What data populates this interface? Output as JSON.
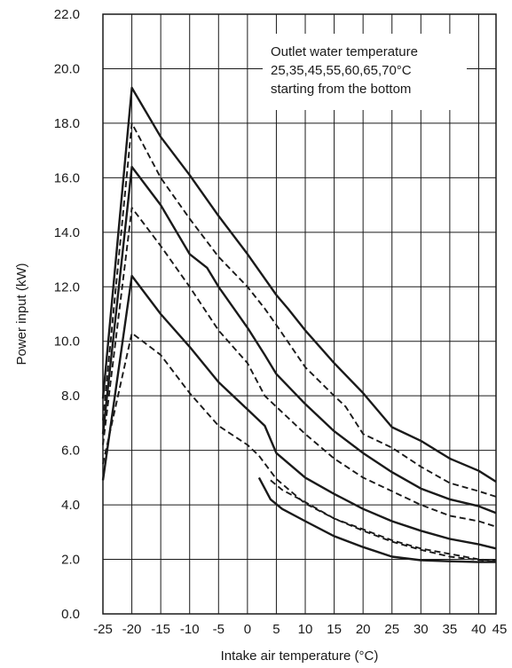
{
  "chart_data": {
    "type": "line",
    "xlabel": "Intake air temperature (°C)",
    "ylabel": "Power input (kW)",
    "xlim": [
      -25,
      43
    ],
    "ylim": [
      0,
      22
    ],
    "x_ticks": [
      -25,
      -20,
      -15,
      -10,
      -5,
      0,
      5,
      10,
      15,
      20,
      25,
      30,
      35,
      40,
      45
    ],
    "x_tick_labels": [
      "-25",
      "-20",
      "-15",
      "-10",
      "-5",
      "0",
      "5",
      "10",
      "15",
      "20",
      "25",
      "30",
      "35",
      "40",
      "45"
    ],
    "y_ticks": [
      0,
      2,
      4,
      6,
      8,
      10,
      12,
      14,
      16,
      18,
      20,
      22
    ],
    "y_tick_labels": [
      "0.0",
      "2.0",
      "4.0",
      "6.0",
      "8.0",
      "10.0",
      "12.0",
      "14.0",
      "16.0",
      "18.0",
      "20.0",
      "22.0"
    ],
    "grid": true,
    "annotation": [
      "Outlet water temperature",
      "25,35,45,55,60,65,70°C",
      "starting from the bottom"
    ],
    "series": [
      {
        "style": "solid",
        "points": [
          [
            2,
            5.0
          ],
          [
            4,
            4.2
          ],
          [
            6,
            3.85
          ],
          [
            10,
            3.4
          ],
          [
            15,
            2.85
          ],
          [
            20,
            2.45
          ],
          [
            25,
            2.1
          ],
          [
            30,
            1.97
          ],
          [
            35,
            1.93
          ],
          [
            40,
            1.9
          ],
          [
            43,
            1.9
          ]
        ]
      },
      {
        "style": "dashed",
        "points": [
          [
            4,
            4.9
          ],
          [
            6,
            4.55
          ],
          [
            10,
            4.1
          ],
          [
            15,
            3.5
          ],
          [
            20,
            3.05
          ],
          [
            25,
            2.65
          ],
          [
            30,
            2.35
          ],
          [
            35,
            2.1
          ],
          [
            40,
            1.98
          ],
          [
            43,
            1.93
          ]
        ]
      },
      {
        "style": "solid",
        "points": [
          [
            -25,
            4.9
          ],
          [
            -20,
            12.4
          ],
          [
            -15,
            11.0
          ],
          [
            -10,
            9.8
          ],
          [
            -5,
            8.5
          ],
          [
            0,
            7.5
          ],
          [
            3,
            6.9
          ],
          [
            5,
            5.9
          ],
          [
            10,
            5.0
          ],
          [
            15,
            4.4
          ],
          [
            20,
            3.85
          ],
          [
            25,
            3.4
          ],
          [
            30,
            3.05
          ],
          [
            35,
            2.75
          ],
          [
            40,
            2.55
          ],
          [
            43,
            2.4
          ]
        ]
      },
      {
        "style": "dashed",
        "points": [
          [
            -25,
            5.5
          ],
          [
            -20,
            10.3
          ],
          [
            -15,
            9.5
          ],
          [
            -10,
            8.1
          ],
          [
            -5,
            6.9
          ],
          [
            0,
            6.2
          ],
          [
            2,
            5.8
          ],
          [
            5,
            4.95
          ],
          [
            10,
            4.05
          ],
          [
            15,
            3.5
          ],
          [
            20,
            3.1
          ],
          [
            25,
            2.7
          ],
          [
            30,
            2.4
          ],
          [
            35,
            2.2
          ],
          [
            40,
            2.0
          ],
          [
            43,
            1.95
          ]
        ]
      },
      {
        "style": "dashed",
        "points": [
          [
            -25,
            6.2
          ],
          [
            -20,
            14.9
          ],
          [
            -15,
            13.5
          ],
          [
            -10,
            12.0
          ],
          [
            -5,
            10.4
          ],
          [
            0,
            9.2
          ],
          [
            3,
            8.0
          ],
          [
            5,
            7.6
          ],
          [
            10,
            6.6
          ],
          [
            15,
            5.7
          ],
          [
            20,
            5.0
          ],
          [
            25,
            4.5
          ],
          [
            30,
            4.0
          ],
          [
            35,
            3.6
          ],
          [
            40,
            3.4
          ],
          [
            43,
            3.2
          ]
        ]
      },
      {
        "style": "solid",
        "points": [
          [
            -25,
            6.6
          ],
          [
            -20,
            16.4
          ],
          [
            -15,
            15.0
          ],
          [
            -10,
            13.2
          ],
          [
            -7,
            12.7
          ],
          [
            -5,
            12.0
          ],
          [
            0,
            10.5
          ],
          [
            3,
            9.5
          ],
          [
            5,
            8.8
          ],
          [
            10,
            7.7
          ],
          [
            15,
            6.7
          ],
          [
            20,
            5.9
          ],
          [
            25,
            5.2
          ],
          [
            30,
            4.6
          ],
          [
            35,
            4.2
          ],
          [
            40,
            3.95
          ],
          [
            43,
            3.7
          ]
        ]
      },
      {
        "style": "dashed",
        "points": [
          [
            -25,
            7.1
          ],
          [
            -20,
            18.0
          ],
          [
            -15,
            16.0
          ],
          [
            -10,
            14.5
          ],
          [
            -5,
            13.1
          ],
          [
            0,
            12.0
          ],
          [
            3,
            11.2
          ],
          [
            5,
            10.6
          ],
          [
            10,
            9.05
          ],
          [
            15,
            8.0
          ],
          [
            17,
            7.6
          ],
          [
            20,
            6.6
          ],
          [
            25,
            6.1
          ],
          [
            30,
            5.4
          ],
          [
            35,
            4.8
          ],
          [
            40,
            4.5
          ],
          [
            43,
            4.3
          ]
        ]
      },
      {
        "style": "solid",
        "points": [
          [
            -25,
            7.9
          ],
          [
            -20,
            19.3
          ],
          [
            -15,
            17.5
          ],
          [
            -10,
            16.1
          ],
          [
            -5,
            14.6
          ],
          [
            0,
            13.2
          ],
          [
            3,
            12.3
          ],
          [
            5,
            11.7
          ],
          [
            7,
            11.2
          ],
          [
            10,
            10.4
          ],
          [
            15,
            9.2
          ],
          [
            20,
            8.1
          ],
          [
            25,
            6.85
          ],
          [
            30,
            6.35
          ],
          [
            35,
            5.7
          ],
          [
            40,
            5.25
          ],
          [
            43,
            4.85
          ]
        ]
      }
    ]
  }
}
